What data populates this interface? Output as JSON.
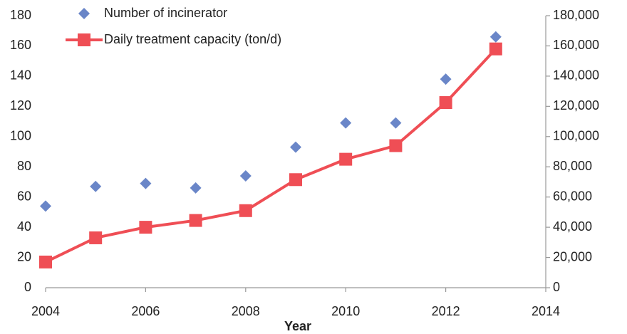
{
  "chart_data": {
    "type": "line",
    "xlabel": "Year",
    "x": [
      2004,
      2005,
      2006,
      2007,
      2008,
      2009,
      2010,
      2011,
      2012,
      2013
    ],
    "xlim": [
      2004,
      2014
    ],
    "xticks": [
      2004,
      2006,
      2008,
      2010,
      2012,
      2014
    ],
    "ylim": [
      0,
      180
    ],
    "yticks": [
      0,
      20,
      40,
      60,
      80,
      100,
      120,
      140,
      160,
      180
    ],
    "y2lim": [
      0,
      180000
    ],
    "y2ticks": [
      0,
      {
        "value": 20000,
        "label": "20,000"
      },
      {
        "value": 40000,
        "label": "40,000"
      },
      {
        "value": 60000,
        "label": "60,000"
      },
      {
        "value": 80000,
        "label": "80,000"
      },
      {
        "value": 100000,
        "label": "100,000"
      },
      {
        "value": 120000,
        "label": "120,000"
      },
      {
        "value": 140000,
        "label": "140,000"
      },
      {
        "value": 160000,
        "label": "160,000"
      },
      {
        "value": 180000,
        "label": "180,000"
      }
    ],
    "series": [
      {
        "name": "Number of incinerator",
        "type": "scatter",
        "color": "#6a86c8",
        "values": [
          54,
          67,
          69,
          66,
          74,
          93,
          109,
          109,
          138,
          166
        ]
      },
      {
        "name": "Daily treatment capacity (ton/d)",
        "type": "line",
        "axis": "y2",
        "color": "#ef4e55",
        "values": [
          17000,
          33000,
          40000,
          44500,
          51000,
          71500,
          85000,
          94000,
          122500,
          158000
        ]
      }
    ]
  }
}
